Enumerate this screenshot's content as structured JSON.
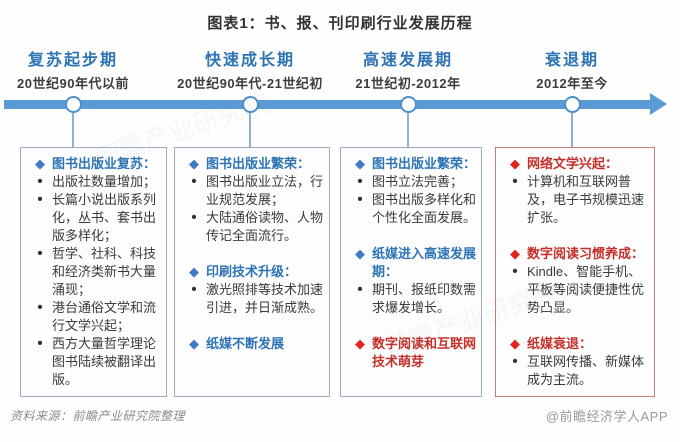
{
  "title": "图表1：书、报、刊印刷行业发展历程",
  "timeline": {
    "phases": [
      {
        "name": "复苏起步期",
        "period": "20世纪90年代以前"
      },
      {
        "name": "快速成长期",
        "period": "20世纪90年代-21世纪初"
      },
      {
        "name": "高速发展期",
        "period": "21世纪初-2012年"
      },
      {
        "name": "衰退期",
        "period": "2012年至今"
      }
    ]
  },
  "boxes": [
    {
      "accent": "blue",
      "sections": [
        {
          "tone": "blue",
          "heading": "图书出版业复苏：",
          "bullets": [
            "出版社数量增加；",
            "长篇小说出版系列化，丛书、套书出版多样化；",
            "哲学、社科、科技和经济类新书大量涌现；",
            "港台通俗文学和流行文学兴起；",
            "西方大量哲学理论图书陆续被翻译出版。"
          ]
        }
      ]
    },
    {
      "accent": "blue",
      "sections": [
        {
          "tone": "blue",
          "heading": "图书出版业繁荣：",
          "bullets": [
            "图书出版业立法，行业规范发展；",
            "大陆通俗读物、人物传记全面流行。"
          ]
        },
        {
          "tone": "blue",
          "heading": "印刷技术升级：",
          "bullets": [
            "激光照排等技术加速引进，并日渐成熟。"
          ]
        },
        {
          "tone": "blue",
          "heading": "纸媒不断发展",
          "bullets": []
        }
      ]
    },
    {
      "accent": "blue",
      "sections": [
        {
          "tone": "blue",
          "heading": "图书出版业繁荣：",
          "bullets": [
            "图书立法完善；",
            "图书出版多样化和个性化全面发展。"
          ]
        },
        {
          "tone": "blue",
          "heading": "纸媒进入高速发展期：",
          "bullets": [
            "期刊、报纸印数需求爆发增长。"
          ]
        },
        {
          "tone": "red",
          "heading": "数字阅读和互联网技术萌芽",
          "bullets": []
        }
      ]
    },
    {
      "accent": "red",
      "sections": [
        {
          "tone": "red",
          "heading": "网络文学兴起：",
          "bullets": [
            "计算机和互联网普及，电子书规模迅速扩张。"
          ]
        },
        {
          "tone": "red",
          "heading": "数字阅读习惯养成：",
          "bullets": [
            "Kindle、智能手机、平板等阅读便捷性优势凸显。"
          ]
        },
        {
          "tone": "red",
          "heading": "纸媒衰退：",
          "bullets": [
            "互联网传播、新媒体成为主流。"
          ]
        }
      ]
    }
  ],
  "icons": {
    "diamond": "◆",
    "bullet": "•"
  },
  "footer": {
    "source": "资料来源：前瞻产业研究院整理",
    "credit": "@前瞻经济学人APP",
    "watermark": "前瞻产业研究院"
  },
  "colors": {
    "phase_heading": "#2E74B5",
    "timeline": "#5B9BD5",
    "diamond_blue": "#3F7AC6",
    "diamond_red": "#E3251D",
    "heading_red": "#C5302B",
    "box_border_blue": "#9FACBF",
    "box_border_red": "#C47C76"
  }
}
